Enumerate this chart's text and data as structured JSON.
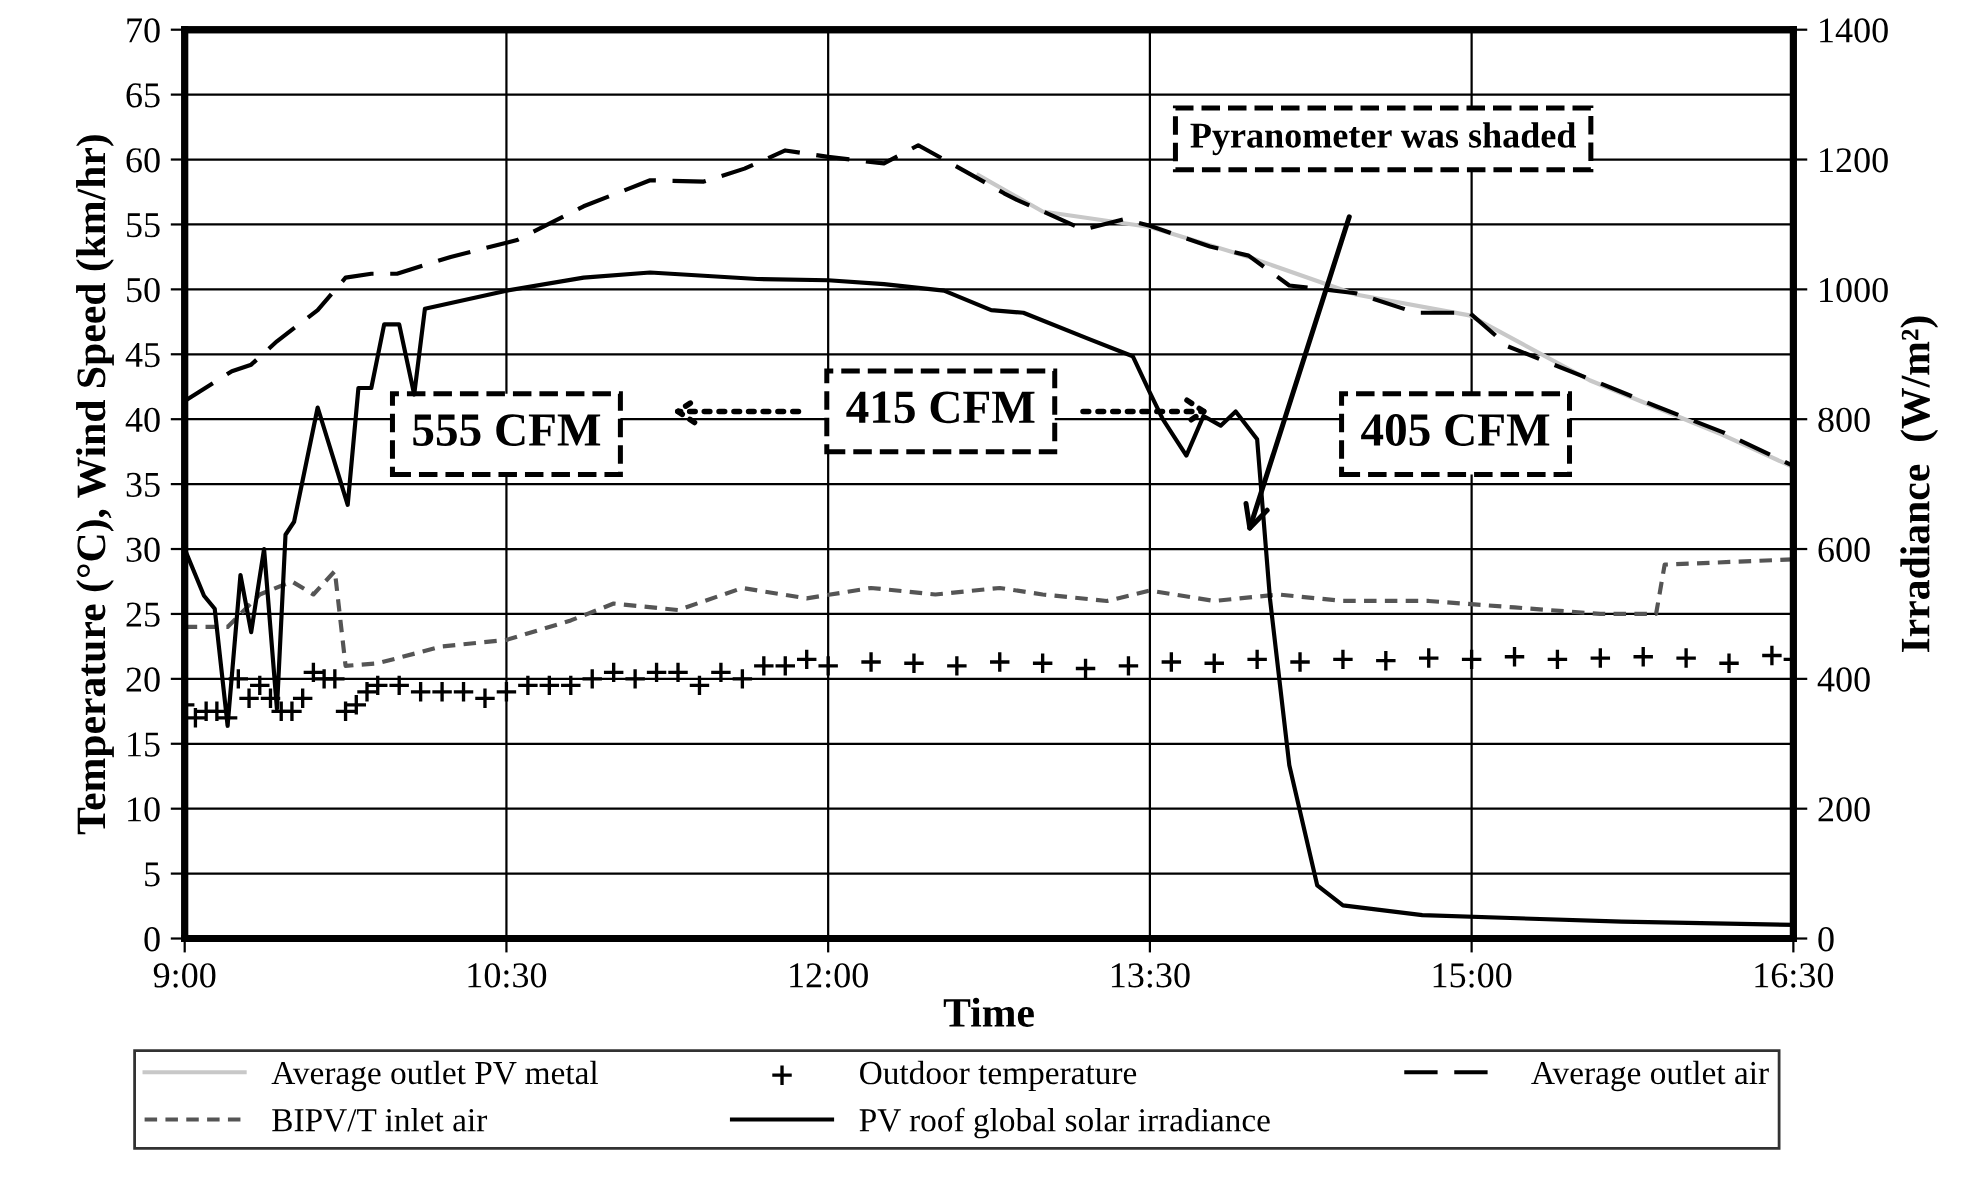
{
  "chart_data": {
    "type": "line",
    "xlabel": "Time",
    "ylabel": "Temperature (°C), Wind Speed (km/hr)",
    "y2label": "Irradiance  (W/m²)",
    "xlim": [
      9,
      16.5
    ],
    "xticks": [
      {
        "value": 9,
        "label": "9:00"
      },
      {
        "value": 10.5,
        "label": "10:30"
      },
      {
        "value": 12,
        "label": "12:00"
      },
      {
        "value": 13.5,
        "label": "13:30"
      },
      {
        "value": 15,
        "label": "15:00"
      },
      {
        "value": 16.5,
        "label": "16:30"
      }
    ],
    "ylim": [
      0,
      70
    ],
    "yticks": [
      0,
      5,
      10,
      15,
      20,
      25,
      30,
      35,
      40,
      45,
      50,
      55,
      60,
      65,
      70
    ],
    "y2lim": [
      0,
      1400
    ],
    "y2ticks": [
      0,
      200,
      400,
      600,
      800,
      1000,
      1200,
      1400
    ],
    "grid": true,
    "legend": "bottom",
    "annotations": [
      "555 CFM",
      "415 CFM",
      "405 CFM",
      "Pyranometer was shaded"
    ],
    "series": [
      {
        "name": "Average outlet PV metal",
        "color": "#c8c8c8",
        "line_style": "solid",
        "marker": "none",
        "x": [
          12.7,
          13.0,
          13.5,
          13.96,
          14.46,
          14.99,
          15.55,
          16.17,
          16.5
        ],
        "values": [
          58.8,
          56.0,
          54.8,
          52.5,
          49.6,
          48.0,
          43.0,
          38.8,
          36.3
        ]
      },
      {
        "name": "Outdoor temperature",
        "type": "scatter",
        "color": "#000000",
        "marker": "cross",
        "x": [
          9.0,
          9.05,
          9.1,
          9.15,
          9.2,
          9.25,
          9.3,
          9.35,
          9.4,
          9.45,
          9.5,
          9.55,
          9.6,
          9.65,
          9.7,
          9.75,
          9.8,
          9.85,
          9.9,
          10.0,
          10.1,
          10.2,
          10.3,
          10.4,
          10.5,
          10.6,
          10.7,
          10.8,
          10.9,
          11.0,
          11.1,
          11.2,
          11.3,
          11.4,
          11.5,
          11.6,
          11.7,
          11.8,
          11.9,
          12.0,
          12.2,
          12.4,
          12.6,
          12.8,
          13.0,
          13.2,
          13.4,
          13.6,
          13.8,
          14.0,
          14.2,
          14.4,
          14.6,
          14.8,
          15.0,
          15.2,
          15.4,
          15.6,
          15.8,
          16.0,
          16.2,
          16.4,
          16.5
        ],
        "values": [
          18,
          17,
          17.5,
          17.5,
          17,
          20,
          18.5,
          19.5,
          18.5,
          17.5,
          17.5,
          18.5,
          20.5,
          20,
          20,
          17.5,
          18,
          19,
          19.5,
          19.5,
          19,
          19,
          19,
          18.5,
          19,
          19.5,
          19.5,
          19.5,
          20,
          20.5,
          20,
          20.5,
          20.5,
          19.5,
          20.5,
          20,
          21,
          21,
          21.5,
          21,
          21.3,
          21.2,
          21,
          21.3,
          21.2,
          20.8,
          21,
          21.3,
          21.2,
          21.5,
          21.3,
          21.5,
          21.4,
          21.6,
          21.5,
          21.7,
          21.5,
          21.6,
          21.7,
          21.6,
          21.2,
          21.8,
          21.5
        ]
      },
      {
        "name": "Average outlet air",
        "color": "#000000",
        "line_style": "dashed",
        "marker": "none",
        "x": [
          9.0,
          9.22,
          9.31,
          9.43,
          9.62,
          9.75,
          9.87,
          9.99,
          10.24,
          10.55,
          10.86,
          11.17,
          11.42,
          11.61,
          11.8,
          12.0,
          12.26,
          12.42,
          12.66,
          12.82,
          12.88,
          13.19,
          13.38,
          13.5,
          13.78,
          13.96,
          14.15,
          14.46,
          14.74,
          14.99,
          15.17,
          15.55,
          15.86,
          16.17,
          16.5
        ],
        "values": [
          41.4,
          43.7,
          44.2,
          46,
          48.4,
          50.9,
          51.2,
          51.2,
          52.5,
          53.8,
          56.4,
          58.4,
          58.3,
          59.3,
          60.7,
          60.2,
          59.7,
          61.1,
          58.9,
          57.4,
          56.9,
          54.6,
          55.4,
          54.9,
          53.3,
          52.6,
          50.3,
          49.7,
          48.2,
          48.2,
          45.6,
          43.1,
          41.0,
          39.0,
          36.4
        ]
      },
      {
        "name": "BIPV/T inlet air",
        "color": "#555555",
        "line_style": "dotted",
        "marker": "none",
        "x": [
          9.0,
          9.2,
          9.35,
          9.5,
          9.6,
          9.7,
          9.75,
          9.9,
          10.2,
          10.5,
          10.8,
          11.0,
          11.3,
          11.6,
          11.9,
          12.2,
          12.5,
          12.8,
          13.0,
          13.3,
          13.5,
          13.8,
          14.1,
          14.4,
          14.8,
          15.2,
          15.6,
          15.86,
          15.9,
          16.5
        ],
        "values": [
          24,
          24,
          26.5,
          27.5,
          26.5,
          28.3,
          21,
          21.2,
          22.5,
          23,
          24.5,
          25.8,
          25.3,
          27,
          26.2,
          27,
          26.5,
          27,
          26.5,
          26,
          26.8,
          26,
          26.5,
          26,
          26,
          25.5,
          25,
          25,
          28.8,
          29.2
        ]
      },
      {
        "name": "PV roof global solar irradiance",
        "color": "#000000",
        "line_style": "solid",
        "marker": "none",
        "axis": "y2",
        "x": [
          9.0,
          9.09,
          9.14,
          9.2,
          9.26,
          9.31,
          9.37,
          9.43,
          9.47,
          9.51,
          9.62,
          9.76,
          9.81,
          9.87,
          9.93,
          10.0,
          10.07,
          10.12,
          10.5,
          10.86,
          11.17,
          11.67,
          12.0,
          12.26,
          12.54,
          12.76,
          12.91,
          13.22,
          13.42,
          13.5,
          13.56,
          13.67,
          13.75,
          13.83,
          13.9,
          14.0,
          14.06,
          14.15,
          14.28,
          14.4,
          14.77,
          15.7,
          16.5
        ],
        "values": [
          600,
          528,
          508,
          328,
          560,
          472,
          600,
          354,
          622,
          642,
          818,
          668,
          848,
          848,
          946,
          946,
          838,
          970,
          998,
          1018,
          1026,
          1016,
          1014,
          1008,
          998,
          968,
          964,
          923,
          897,
          841,
          800,
          744,
          805,
          790,
          812,
          769,
          523,
          267,
          82,
          51,
          36,
          26,
          21
        ]
      }
    ]
  }
}
